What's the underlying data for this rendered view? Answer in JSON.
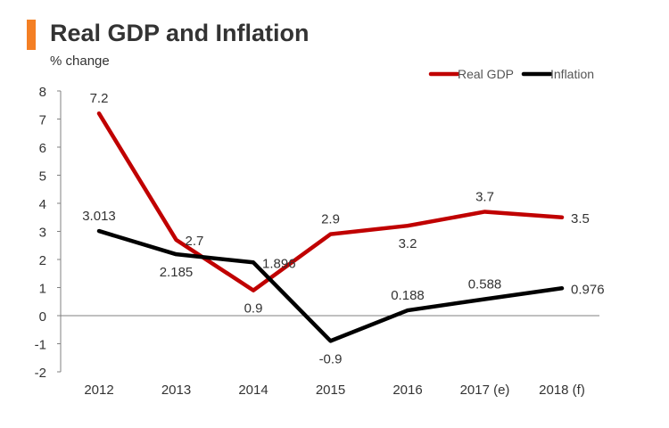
{
  "colors": {
    "accent": "#F47F24",
    "gdp": "#C00000",
    "inflation": "#000000",
    "text": "#333333",
    "axis": "#808080",
    "legend_text": "#555555"
  },
  "chart_data": {
    "type": "line",
    "title": "Real GDP and Inflation",
    "subtitle": "% change",
    "xlabel": "",
    "ylabel": "",
    "categories": [
      "2012",
      "2013",
      "2014",
      "2015",
      "2016",
      "2017 (e)",
      "2018 (f)"
    ],
    "ylim": [
      -2,
      8
    ],
    "yticks": [
      8,
      7,
      6,
      5,
      4,
      3,
      2,
      1,
      0,
      -1,
      -2
    ],
    "legend": "top-right",
    "grid": false,
    "series": [
      {
        "name": "Real GDP",
        "color": "#C00000",
        "values": [
          7.2,
          2.7,
          0.9,
          2.9,
          3.2,
          3.7,
          3.5
        ],
        "labels": [
          "7.2",
          "2.7",
          "0.9",
          "2.9",
          "3.2",
          "3.7",
          "3.5"
        ],
        "label_pos": [
          "above",
          "right",
          "below",
          "above",
          "below",
          "above",
          "right"
        ]
      },
      {
        "name": "Inflation",
        "color": "#000000",
        "values": [
          3.013,
          2.185,
          1.896,
          -0.9,
          0.188,
          0.588,
          0.976
        ],
        "labels": [
          "3.013",
          "2.185",
          "1.896",
          "-0.9",
          "0.188",
          "0.588",
          "0.976"
        ],
        "label_pos": [
          "above",
          "below",
          "right",
          "below",
          "above",
          "above",
          "right"
        ]
      }
    ]
  }
}
